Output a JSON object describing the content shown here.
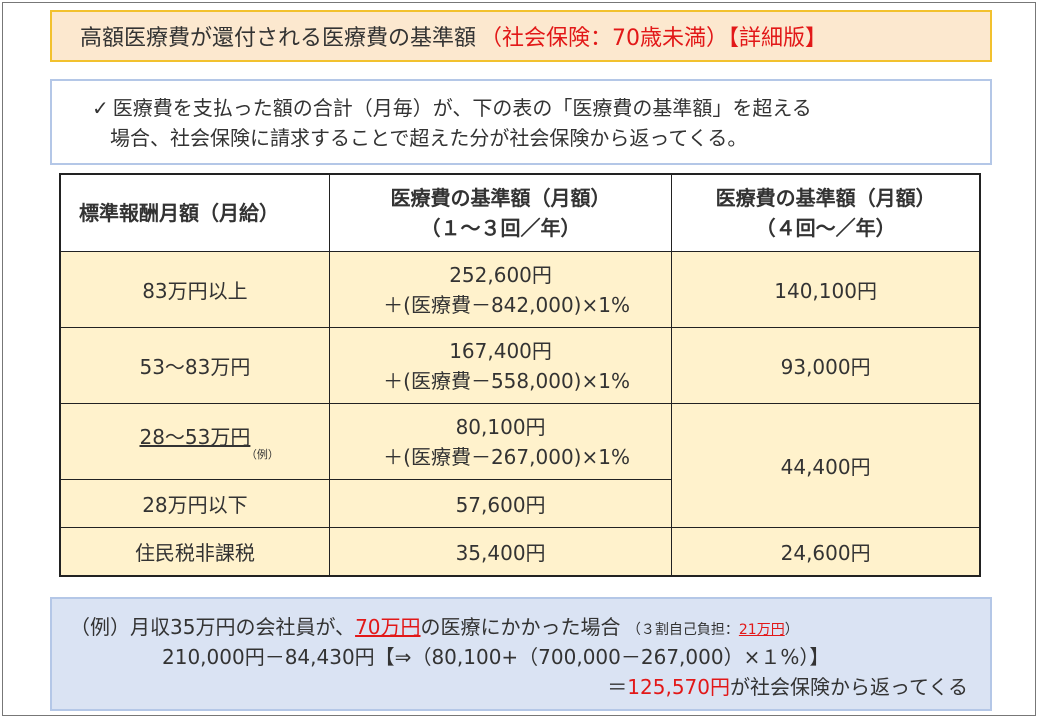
{
  "title": {
    "main": "高額医療費が還付される医療費の基準額",
    "sub": "（社会保険：70歳未満）【詳細版】"
  },
  "note": {
    "check_icon": "check-icon",
    "line1": "医療費を支払った額の合計（月毎）が、下の表の「医療費の基準額」を超える",
    "line2": "場合、社会保険に請求することで超えた分が社会保険から返ってくる。"
  },
  "table": {
    "headers": {
      "col1": "標準報酬月額（月給）",
      "col2_line1": "医療費の基準額（月額）",
      "col2_line2": "（１～３回／年）",
      "col3_line1": "医療費の基準額（月額）",
      "col3_line2": "（４回～／年）"
    },
    "rows": [
      {
        "label": "83万円以上",
        "base_a": "252,600円",
        "base_b": "＋(医療費－842,000)×1%",
        "fourth": "140,100円"
      },
      {
        "label": "53～83万円",
        "base_a": "167,400円",
        "base_b": "＋(医療費－558,000)×1%",
        "fourth": "93,000円"
      },
      {
        "label": "28～53万円",
        "tag": "（例）",
        "base_a": "80,100円",
        "base_b": "＋(医療費－267,000)×1%",
        "fourth": "44,400円"
      },
      {
        "label": "28万円以下",
        "base": "57,600円"
      },
      {
        "label": "住民税非課税",
        "base": "35,400円",
        "fourth": "24,600円"
      }
    ]
  },
  "example": {
    "l1_pre": "（例）月収35万円の会社員が、",
    "l1_amount": "70万円",
    "l1_post": "の医療にかかった場合",
    "l1_note_pre": "（３割自己負担：",
    "l1_note_amount": "21万円",
    "l1_note_post": "）",
    "l2": "210,000円－84,430円【⇒（80,100+（700,000－267,000）×１%）】",
    "l3_pre": "＝",
    "l3_amount": "125,570円",
    "l3_post": "が社会保険から返ってくる"
  }
}
